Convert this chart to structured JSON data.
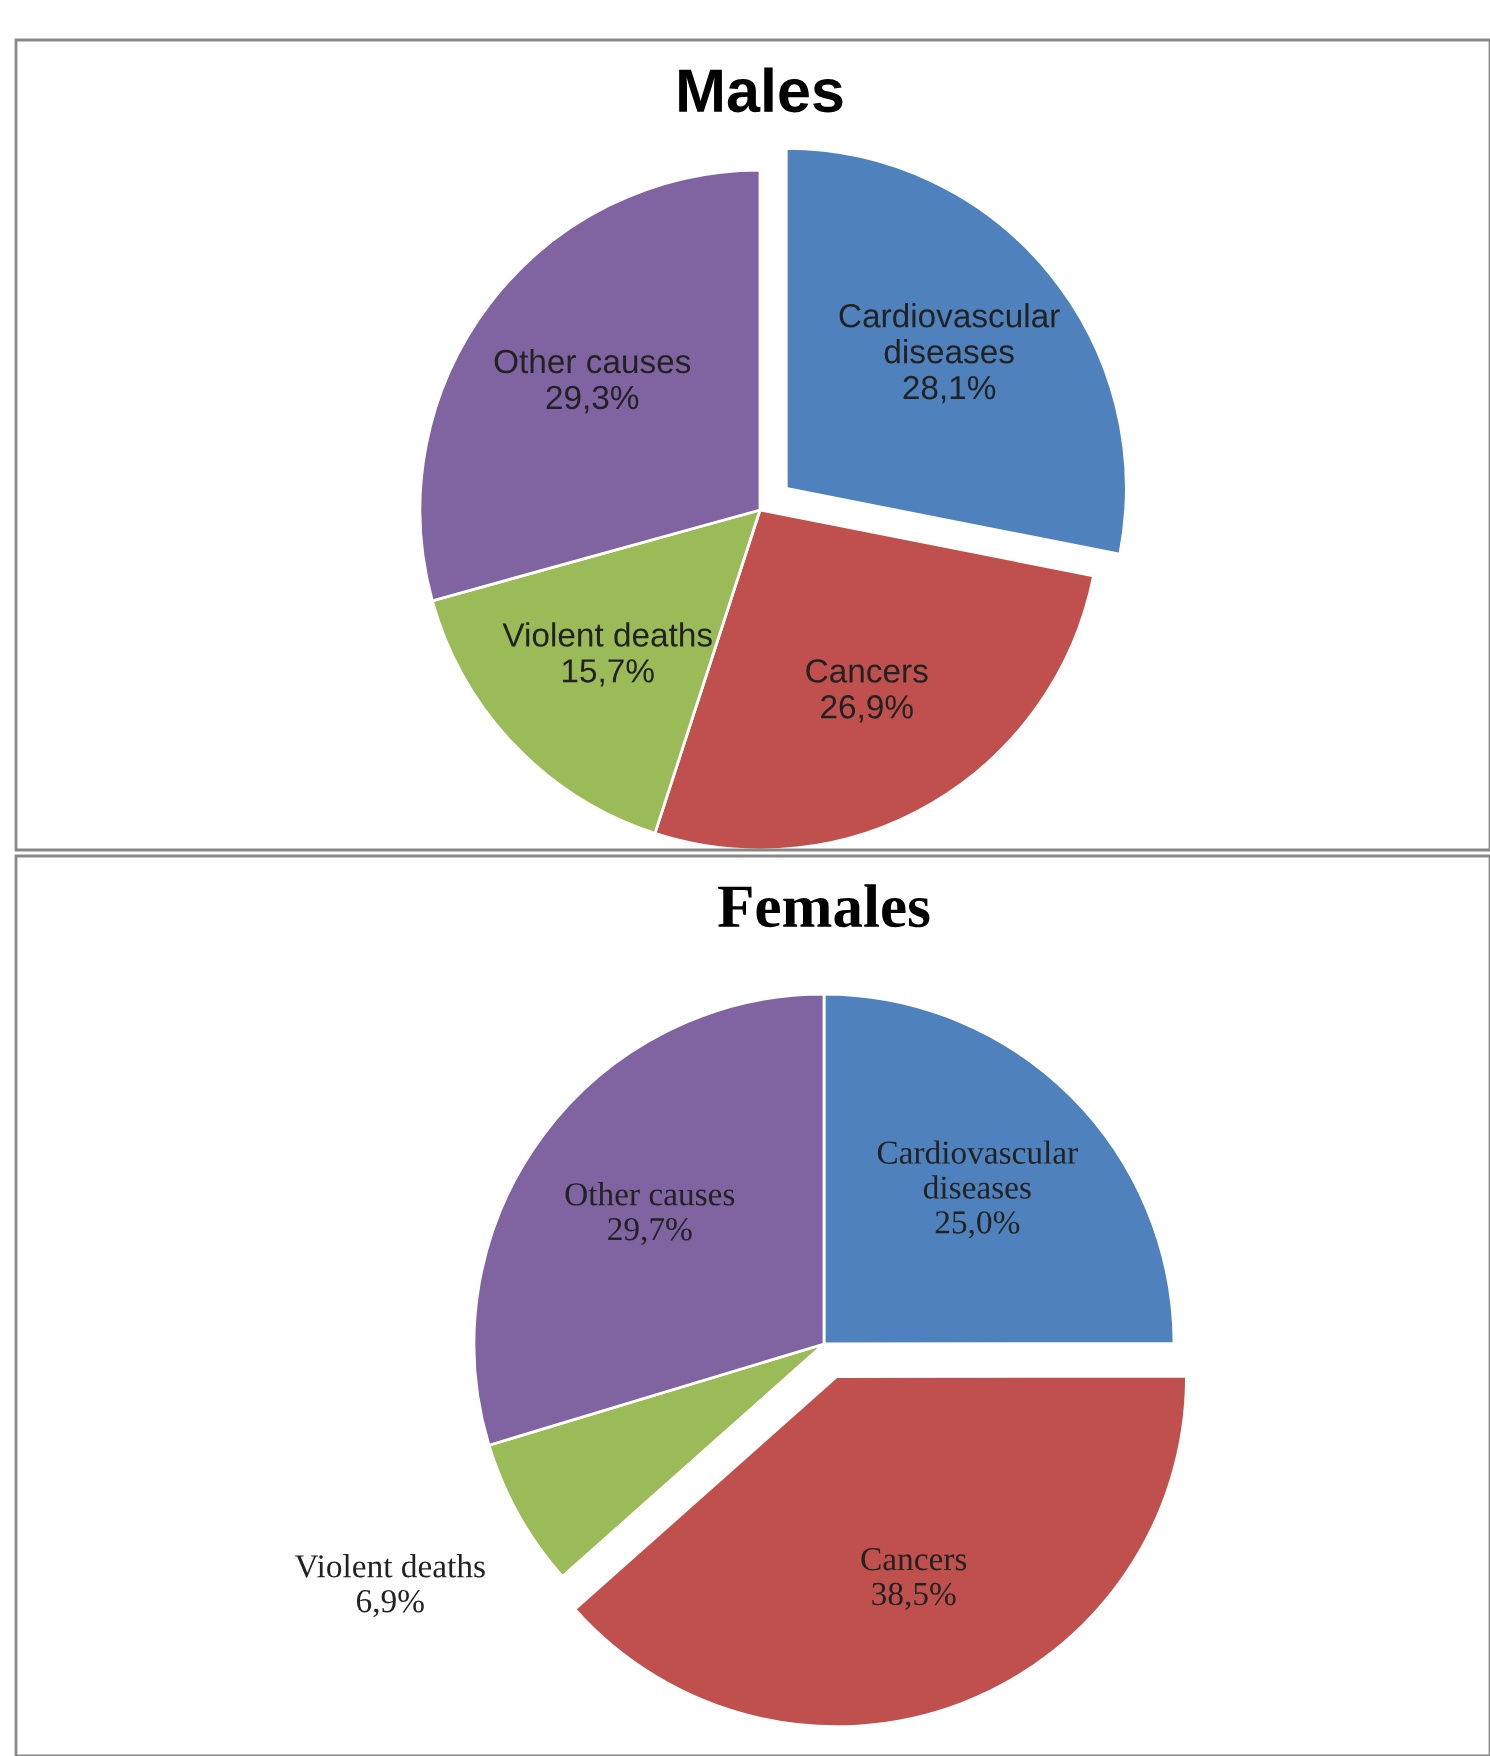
{
  "chart_data": [
    {
      "type": "pie",
      "title": "Males",
      "categories": [
        "Cardiovascular\ndiseases",
        "Cancers",
        "Violent deaths",
        "Other causes"
      ],
      "values": [
        28.1,
        26.9,
        15.7,
        29.3
      ],
      "value_labels": [
        "28,1%",
        "26,9%",
        "15,7%",
        "29,3%"
      ],
      "colors": [
        "#4f81bd",
        "#c0504d",
        "#9bbb59",
        "#8064a2"
      ],
      "legend": false
    },
    {
      "type": "pie",
      "title": "Females",
      "categories": [
        "Cardiovascular\ndiseases",
        "Cancers",
        "Violent deaths",
        "Other causes"
      ],
      "values": [
        25.0,
        38.5,
        6.9,
        29.7
      ],
      "value_labels": [
        "25,0%",
        "38,5%",
        "6,9%",
        "29,7%"
      ],
      "colors": [
        "#4f81bd",
        "#c0504d",
        "#9bbb59",
        "#8064a2"
      ],
      "legend": false
    }
  ]
}
